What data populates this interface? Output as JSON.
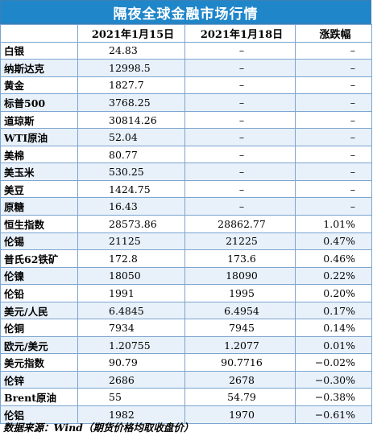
{
  "title": "隔夜全球金融市场行情",
  "headers": [
    "",
    "2021年1月15日",
    "2021年1月18日",
    "涨跌幅"
  ],
  "rows": [
    {
      "name": "白银",
      "v1": "24.83",
      "v2": "–",
      "chg": "–"
    },
    {
      "name": "纳斯达克",
      "v1": "12998.5",
      "v2": "–",
      "chg": "–"
    },
    {
      "name": "黄金",
      "v1": "1827.7",
      "v2": "–",
      "chg": "–"
    },
    {
      "name": "标普500",
      "v1": "3768.25",
      "v2": "–",
      "chg": "–"
    },
    {
      "name": "道琼斯",
      "v1": "30814.26",
      "v2": "–",
      "chg": "–"
    },
    {
      "name": "WTI原油",
      "v1": "52.04",
      "v2": "–",
      "chg": "–"
    },
    {
      "name": "美棉",
      "v1": "80.77",
      "v2": "–",
      "chg": "–"
    },
    {
      "name": "美玉米",
      "v1": "530.25",
      "v2": "–",
      "chg": "–"
    },
    {
      "name": "美豆",
      "v1": "1424.75",
      "v2": "–",
      "chg": "–"
    },
    {
      "name": "原糖",
      "v1": "16.43",
      "v2": "–",
      "chg": "–"
    },
    {
      "name": "恒生指数",
      "v1": "28573.86",
      "v2": "28862.77",
      "chg": "1.01%"
    },
    {
      "name": "伦锡",
      "v1": "21125",
      "v2": "21225",
      "chg": "0.47%"
    },
    {
      "name": "普氏62铁矿",
      "v1": "172.8",
      "v2": "173.6",
      "chg": "0.46%"
    },
    {
      "name": "伦镍",
      "v1": "18050",
      "v2": "18090",
      "chg": "0.22%"
    },
    {
      "name": "伦铅",
      "v1": "1991",
      "v2": "1995",
      "chg": "0.20%"
    },
    {
      "name": "美元/人民",
      "v1": "6.4845",
      "v2": "6.4954",
      "chg": "0.17%"
    },
    {
      "name": "伦铜",
      "v1": "7934",
      "v2": "7945",
      "chg": "0.14%"
    },
    {
      "name": "欧元/美元",
      "v1": "1.20755",
      "v2": "1.2077",
      "chg": "0.01%"
    },
    {
      "name": "美元指数",
      "v1": "90.79",
      "v2": "90.7716",
      "chg": "−0.02%"
    },
    {
      "name": "伦锌",
      "v1": "2686",
      "v2": "2678",
      "chg": "−0.30%"
    },
    {
      "name": "Brent原油",
      "v1": "55",
      "v2": "54.79",
      "chg": "−0.38%"
    },
    {
      "name": "伦铝",
      "v1": "1982",
      "v2": "1970",
      "chg": "−0.61%"
    }
  ],
  "footer": "数据来源：Wind（期货价格均取收盘价）",
  "colors": {
    "title_bg": "#1f86c9",
    "grid_line": "#7ba4cf",
    "stripe": "#e8f1fa"
  }
}
